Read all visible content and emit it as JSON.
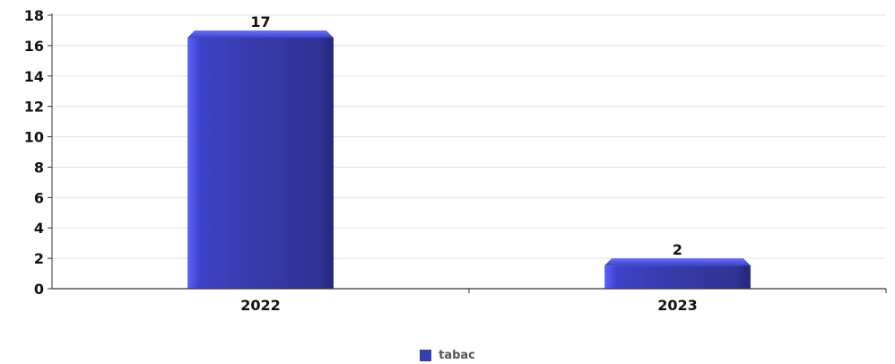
{
  "chart_data": {
    "type": "bar",
    "categories": [
      "2022",
      "2023"
    ],
    "series": [
      {
        "name": "tabac",
        "values": [
          17,
          2
        ],
        "color": "#3a3fb0"
      }
    ],
    "data_labels": [
      "17",
      "2"
    ],
    "title": "",
    "xlabel": "",
    "ylabel": "",
    "ylim": [
      0,
      18
    ],
    "yticks": [
      0,
      2,
      4,
      6,
      8,
      10,
      12,
      14,
      16,
      18
    ],
    "grid": true,
    "legend_position": "bottom-center"
  }
}
